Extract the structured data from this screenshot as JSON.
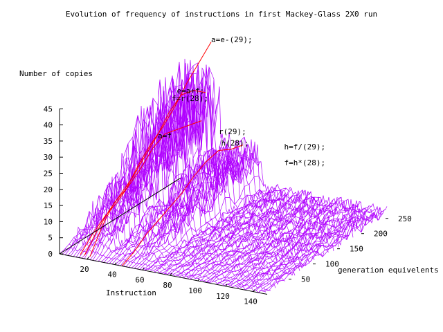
{
  "chart_data": {
    "type": "surface3d",
    "title": "Evolution of frequency of instructions in first Mackey-Glass 2X0 run",
    "xlabel": "Instruction",
    "ylabel": "generation equivelents",
    "zlabel": "Number of copies",
    "xlim": [
      0,
      150
    ],
    "ylim": [
      0,
      250
    ],
    "zlim": [
      0,
      45
    ],
    "x_ticks": [
      "20",
      "40",
      "60",
      "80",
      "100",
      "120",
      "140"
    ],
    "y_ticks": [
      "50",
      "100",
      "150",
      "200",
      "250"
    ],
    "z_ticks": [
      "0",
      "5",
      "10",
      "15",
      "20",
      "25",
      "30",
      "35",
      "40",
      "45"
    ],
    "colors": {
      "surface": "#b000ff",
      "highlight": "#ff0000",
      "axes": "#000000"
    },
    "annotations": [
      {
        "label": "a=e-(29);",
        "instruction": 22,
        "generation": 250,
        "copies": 44
      },
      {
        "label": "e=a+f;",
        "instruction": 20,
        "generation": 185,
        "copies": 34
      },
      {
        "label": "f=r(28);",
        "instruction": 18,
        "generation": 180,
        "copies": 32
      },
      {
        "label": "a=f",
        "instruction": 15,
        "generation": 160,
        "copies": 22
      },
      {
        "label": "r(29);",
        "instruction": 45,
        "generation": 200,
        "copies": 22
      },
      {
        "label": "h(28);",
        "instruction": 45,
        "generation": 205,
        "copies": 18
      },
      {
        "label": "h=f/(29);",
        "instruction": 80,
        "generation": 235,
        "copies": 17
      },
      {
        "label": "f=h*(28);",
        "instruction": 80,
        "generation": 235,
        "copies": 12
      }
    ],
    "highlight_series": [
      {
        "instruction": 22,
        "generations": [
          0,
          25,
          50,
          75,
          100,
          125,
          150,
          175,
          200,
          225,
          250
        ],
        "copies": [
          1,
          8,
          13,
          15,
          20,
          24,
          27,
          31,
          36,
          40,
          44
        ]
      },
      {
        "instruction": 18,
        "generations": [
          0,
          25,
          50,
          75,
          100,
          125,
          150,
          175,
          200,
          225,
          250
        ],
        "copies": [
          1,
          6,
          10,
          13,
          16,
          20,
          24,
          29,
          32,
          31,
          28
        ]
      },
      {
        "instruction": 15,
        "generations": [
          0,
          25,
          50,
          75,
          100,
          125,
          150,
          175,
          200,
          225,
          250
        ],
        "copies": [
          1,
          5,
          8,
          10,
          13,
          16,
          20,
          22,
          21,
          20,
          19
        ]
      },
      {
        "instruction": 45,
        "generations": [
          0,
          25,
          50,
          75,
          100,
          125,
          150,
          175,
          200,
          225,
          250
        ],
        "copies": [
          0,
          2,
          5,
          7,
          9,
          11,
          14,
          16,
          17,
          15,
          14
        ]
      }
    ]
  }
}
